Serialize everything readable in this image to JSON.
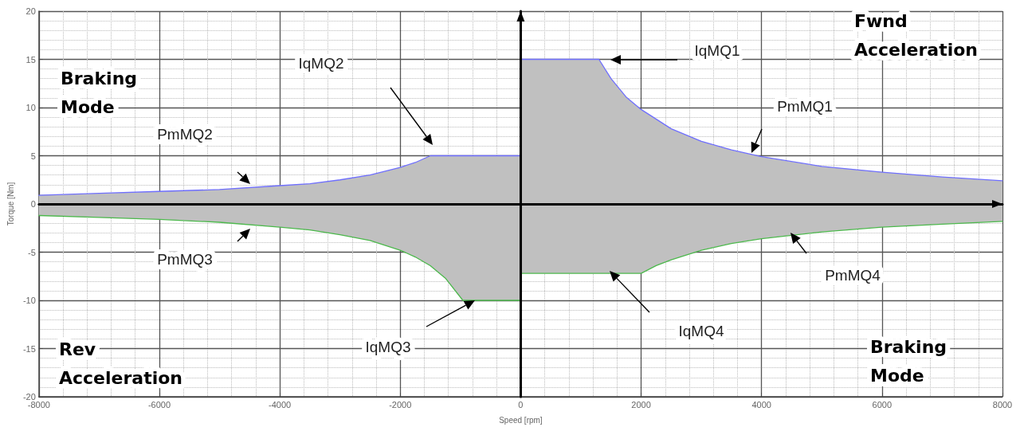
{
  "chart_data": {
    "type": "area",
    "xlabel": "Speed [rpm]",
    "ylabel": "Torque [Nm]",
    "xlim": [
      -8000,
      8000
    ],
    "xticks": [
      -8000,
      -6000,
      -4000,
      -2000,
      0,
      2000,
      4000,
      6000,
      8000
    ],
    "ylim": [
      -20,
      20
    ],
    "yticks": [
      -20,
      -15,
      -10,
      -5,
      0,
      5,
      10,
      15,
      20
    ],
    "grid": true,
    "series": [
      {
        "color": "#6f6fff",
        "x": [
          -8000,
          -7000,
          -6000,
          -5000,
          -4000,
          -3500,
          -3000,
          -2500,
          -2000,
          -1750,
          -1500,
          0,
          0,
          1300,
          1500,
          1750,
          2000,
          2500,
          3000,
          3500,
          4000,
          5000,
          6000,
          7000,
          8000
        ],
        "values": [
          0.9,
          1.1,
          1.3,
          1.5,
          1.9,
          2.1,
          2.5,
          3,
          3.8,
          4.3,
          5,
          5,
          15,
          15,
          13,
          11.1,
          9.8,
          7.8,
          6.5,
          5.6,
          4.9,
          3.9,
          3.3,
          2.8,
          2.4
        ]
      },
      {
        "color": "#4cb84c",
        "x": [
          -8000,
          -7000,
          -6000,
          -5000,
          -4000,
          -3500,
          -3000,
          -2500,
          -2000,
          -1750,
          -1500,
          -1250,
          -960,
          0,
          0,
          2000,
          2250,
          2500,
          3000,
          3500,
          4000,
          5000,
          6000,
          7000,
          8000
        ],
        "values": [
          -1.2,
          -1.4,
          -1.6,
          -1.9,
          -2.4,
          -2.7,
          -3.2,
          -3.8,
          -4.8,
          -5.5,
          -6.4,
          -7.7,
          -10,
          -10,
          -7.2,
          -7.2,
          -6.4,
          -5.8,
          -4.8,
          -4.1,
          -3.6,
          -2.9,
          -2.4,
          -2.1,
          -1.8
        ]
      }
    ],
    "annotations": [
      "Braking Mode",
      "Fwnd Acceleration",
      "Rev Acceleration",
      "Braking Mode",
      "IqMQ1",
      "IqMQ2",
      "PmMQ1",
      "PmMQ2",
      "PmMQ3",
      "PmMQ4",
      "IqMQ4",
      "IqMQ3"
    ]
  }
}
